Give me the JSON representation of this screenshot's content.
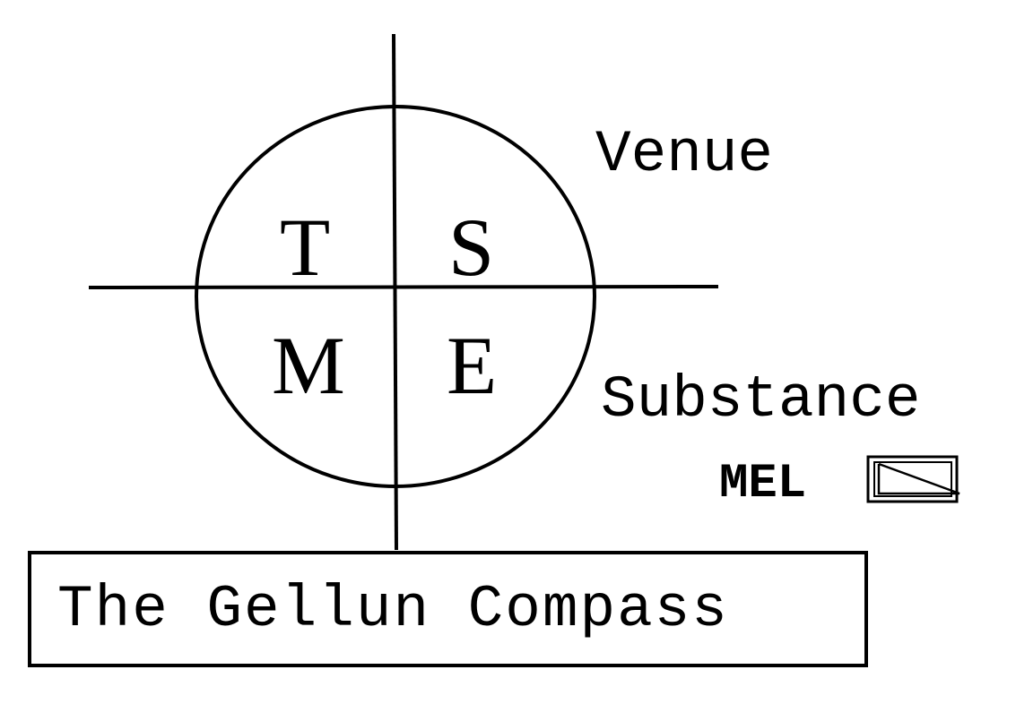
{
  "diagram": {
    "quadrants": {
      "top_left": "T",
      "top_right": "S",
      "bottom_left": "M",
      "bottom_right": "E"
    },
    "side_labels": {
      "upper": "Venue",
      "lower": "Substance"
    },
    "mark": {
      "text": "MEL",
      "icon": "boxed-diagonal-line-icon"
    },
    "title": "The Gellun Compass",
    "colors": {
      "ink": "#000000",
      "background": "#ffffff"
    }
  }
}
